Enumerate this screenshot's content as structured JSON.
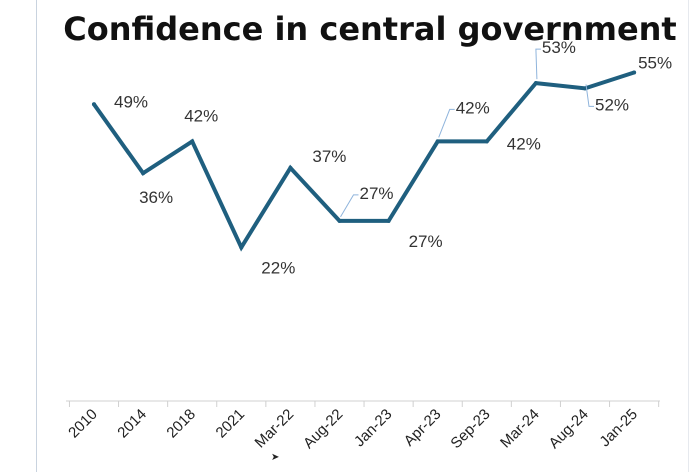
{
  "chart_data": {
    "type": "line",
    "title": "Confidence in central government",
    "categories": [
      "2010",
      "2014",
      "2018",
      "2021",
      "Mar-22",
      "Aug-22",
      "Jan-23",
      "Apr-23",
      "Sep-23",
      "Mar-24",
      "Aug-24",
      "Jan-25"
    ],
    "series": [
      {
        "name": "Confidence in central government",
        "values": [
          49,
          36,
          42,
          22,
          37,
          27,
          27,
          42,
          42,
          53,
          52,
          55
        ],
        "data_labels": [
          "49%",
          "36%",
          "42%",
          "22%",
          "37%",
          "27%",
          "27%",
          "42%",
          "42%",
          "53%",
          "52%",
          "55%"
        ],
        "color": "#1f5f7f"
      }
    ],
    "ylim": [
      0,
      70
    ],
    "xlabel": "",
    "ylabel": "",
    "grid": false,
    "legend": "none"
  },
  "colors": {
    "line": "#1f5f7f",
    "axis": "#d0d0d0",
    "label_text": "#333333",
    "leader_line": "#8fb4dc"
  }
}
